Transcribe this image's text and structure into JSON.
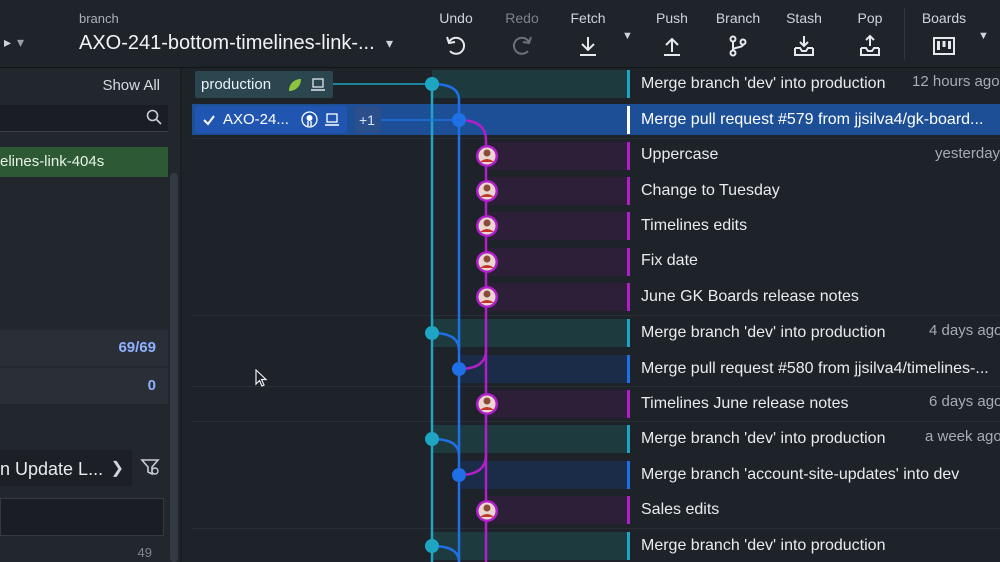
{
  "toolbar": {
    "branch_label": "branch",
    "branch_name": "AXO-241-bottom-timelines-link-...",
    "tools": {
      "undo": "Undo",
      "redo": "Redo",
      "fetch": "Fetch",
      "push": "Push",
      "branch": "Branch",
      "stash": "Stash",
      "pop": "Pop",
      "boards": "Boards"
    }
  },
  "left_panel": {
    "show_all": "Show All",
    "search_placeholder": "",
    "selected_branch": "elines-link-404s",
    "count_a": "69/69",
    "count_b": "0",
    "wip_title": "n Update L...",
    "count_c": "49"
  },
  "refs": {
    "production": "production",
    "current": "AXO-24...",
    "plus": "+1"
  },
  "commits": [
    {
      "message": "Merge branch 'dev' into production",
      "time": "12 hours ago"
    },
    {
      "message": "Merge pull request #579 from jjsilva4/gk-board...",
      "time": ""
    },
    {
      "message": "Uppercase",
      "time": "yesterday"
    },
    {
      "message": "Change to Tuesday",
      "time": ""
    },
    {
      "message": "Timelines edits",
      "time": ""
    },
    {
      "message": "Fix date",
      "time": ""
    },
    {
      "message": "June GK Boards release notes",
      "time": ""
    },
    {
      "message": "Merge branch 'dev' into production",
      "time": "4 days ago"
    },
    {
      "message": "Merge pull request #580 from jjsilva4/timelines-...",
      "time": ""
    },
    {
      "message": "Timelines June release notes",
      "time": "6 days ago"
    },
    {
      "message": "Merge branch 'dev' into production",
      "time": "a week ago"
    },
    {
      "message": "Merge branch 'account-site-updates' into dev",
      "time": ""
    },
    {
      "message": "Sales edits",
      "time": ""
    },
    {
      "message": "Merge branch 'dev' into production",
      "time": ""
    }
  ],
  "colors": {
    "lane_production": "#1fa5c4",
    "lane_dev": "#1f6fe6",
    "lane_feature": "#b01fc9",
    "selected_row": "#1c4f96"
  }
}
